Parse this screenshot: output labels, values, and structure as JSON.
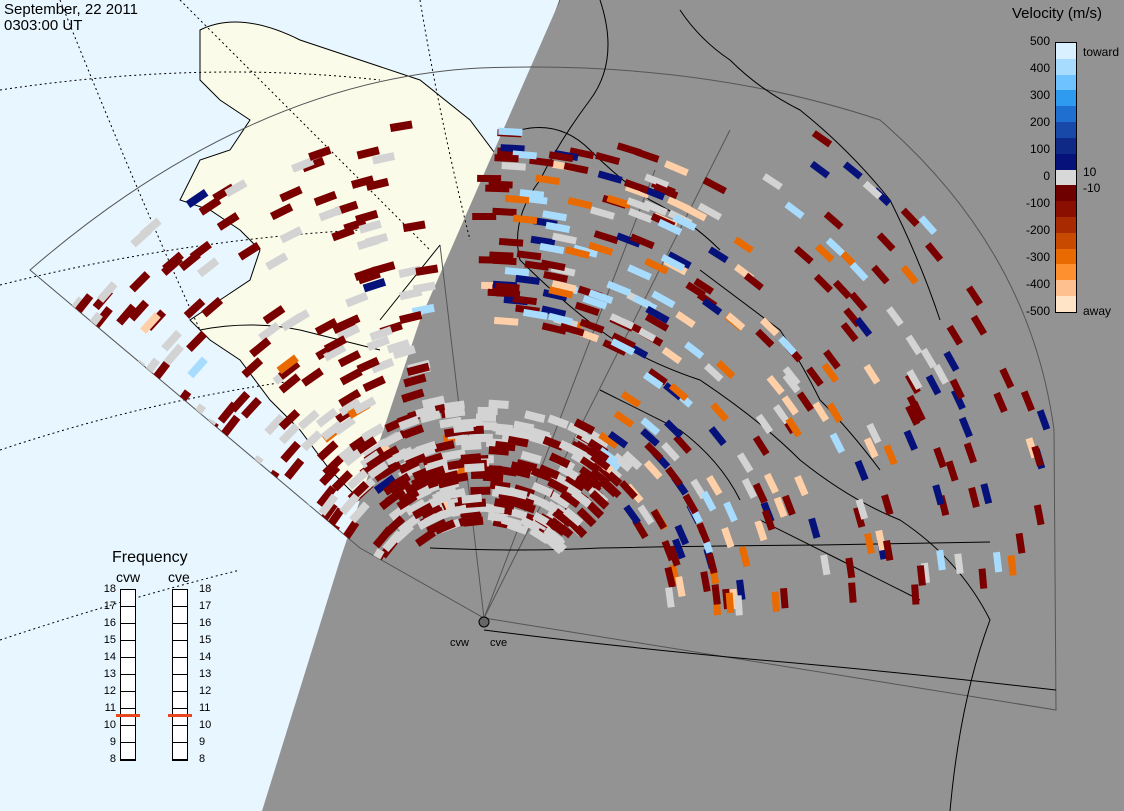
{
  "header": {
    "date": "September, 22 2011",
    "time": "0303:00 UT"
  },
  "colorbar": {
    "title": "Velocity (m/s)",
    "ticks": [
      "500",
      "400",
      "300",
      "200",
      "100",
      "10",
      "0",
      "-10",
      "-100",
      "-200",
      "-300",
      "-400",
      "-500"
    ],
    "toward_label": "toward",
    "away_label": "away",
    "bands": [
      "#d8f0ff",
      "#a8dcff",
      "#6ec2ff",
      "#2f9bf0",
      "#1f6fd0",
      "#1848a8",
      "#0e2a86",
      "#06127a",
      "#d8d8d8",
      "#6e0000",
      "#8a0f00",
      "#a82a00",
      "#c84a00",
      "#e86a00",
      "#ff9030",
      "#ffc090",
      "#ffe4c8"
    ]
  },
  "frequency": {
    "title": "Frequency",
    "radars": [
      "cvw",
      "cve"
    ],
    "scale": [
      "18",
      "17",
      "16",
      "15",
      "14",
      "13",
      "12",
      "11",
      "10",
      "9",
      "8"
    ],
    "selected_mhz": [
      10.6,
      10.6
    ],
    "marker_color": "#e8461e"
  },
  "map": {
    "radar_labels": [
      "cvw",
      "cve"
    ],
    "colors": {
      "ocean": "#e8f6ff",
      "land": "#fbfbea",
      "night": "#939393"
    }
  },
  "scatter_colors": {
    "low_velocity": "#d3d3d3",
    "away_slow": "#7a0000",
    "toward_fast": "#06127a",
    "toward_light": "#a8dcff",
    "away_fast": "#e86a00",
    "away_light": "#ffd0a8"
  }
}
